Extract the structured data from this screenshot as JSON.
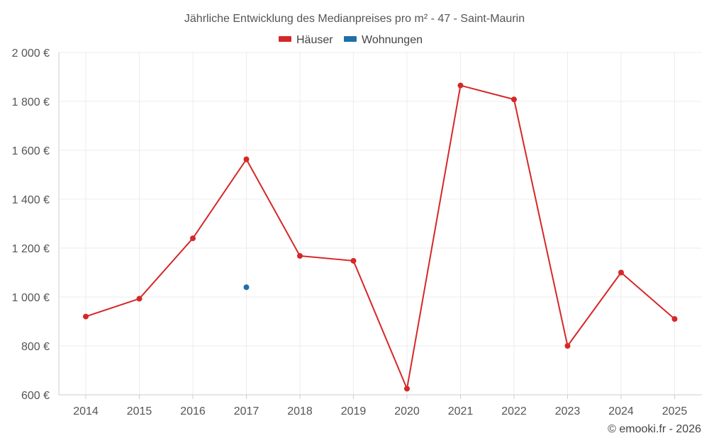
{
  "chart_data": {
    "type": "line",
    "title": "Jährliche Entwicklung des Medianpreises pro m² - 47 - Saint-Maurin",
    "x": [
      "2014",
      "2015",
      "2016",
      "2017",
      "2018",
      "2019",
      "2020",
      "2021",
      "2022",
      "2023",
      "2024",
      "2025"
    ],
    "y_ticks": [
      "600 €",
      "800 €",
      "1 000 €",
      "1 200 €",
      "1 400 €",
      "1 600 €",
      "1 800 €",
      "2 000 €"
    ],
    "ylim": [
      600,
      2000
    ],
    "grid": true,
    "legend_position": "top-center",
    "series": [
      {
        "name": "Häuser",
        "color": "#d62728",
        "values": [
          920,
          993,
          1240,
          1563,
          1168,
          1148,
          625,
          1865,
          1808,
          800,
          1100,
          910
        ]
      },
      {
        "name": "Wohnungen",
        "color": "#1f6fa8",
        "values": [
          null,
          null,
          null,
          1040,
          null,
          null,
          null,
          null,
          null,
          null,
          null,
          null
        ]
      }
    ]
  },
  "credit": "© emooki.fr - 2026"
}
